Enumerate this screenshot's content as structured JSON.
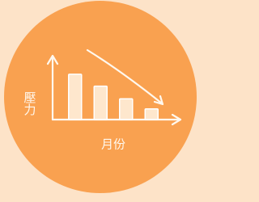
{
  "chart_data": {
    "type": "bar",
    "y_label": "壓力",
    "x_label": "月份",
    "categories": [
      null,
      null,
      null,
      null
    ],
    "values": [
      72,
      53,
      33,
      17
    ],
    "color": "#fff3e3",
    "ylim": [
      0,
      100
    ]
  }
}
